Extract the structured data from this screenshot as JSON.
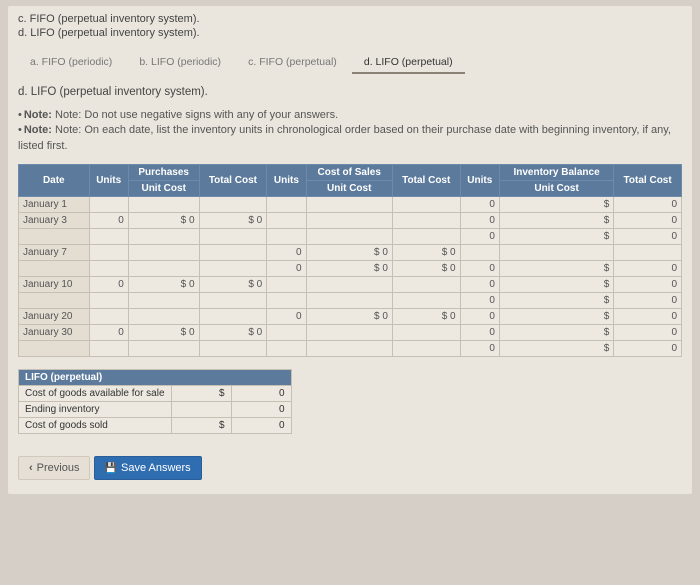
{
  "problems": {
    "c": "c. FIFO (perpetual inventory system).",
    "d": "d. LIFO (perpetual inventory system)."
  },
  "tabs": [
    {
      "label": "a. FIFO (periodic)",
      "active": false
    },
    {
      "label": "b. LIFO (periodic)",
      "active": false
    },
    {
      "label": "c. FIFO (perpetual)",
      "active": false
    },
    {
      "label": "d. LIFO (perpetual)",
      "active": true
    }
  ],
  "section_title": "d. LIFO (perpetual inventory system).",
  "notes": {
    "n1": "Note: Do not use negative signs with any of your answers.",
    "n2": "Note: On each date, list the inventory units in chronological order based on their purchase date with beginning inventory, if any, listed first."
  },
  "table": {
    "group_headers": {
      "purchases": "Purchases",
      "cos": "Cost of Sales",
      "inv": "Inventory Balance"
    },
    "col_headers": {
      "date": "Date",
      "units": "Units",
      "unit_cost": "Unit Cost",
      "total_cost": "Total Cost"
    },
    "rows": [
      {
        "date": "January 1",
        "p_units": "",
        "p_uc": "",
        "p_tc": "",
        "c_units": "",
        "c_uc": "",
        "c_tc": "",
        "i_units": "0",
        "i_uc": "$",
        "i_tc": "0 $",
        "i_tot": "0"
      },
      {
        "date": "January 3",
        "p_units": "0",
        "p_uc": "$  0",
        "p_tc": "$  0",
        "c_units": "",
        "c_uc": "",
        "c_tc": "",
        "i_units": "0",
        "i_uc": "$",
        "i_tc": "0 $",
        "i_tot": "0"
      },
      {
        "date": "",
        "p_units": "",
        "p_uc": "",
        "p_tc": "",
        "c_units": "",
        "c_uc": "",
        "c_tc": "",
        "i_units": "0",
        "i_uc": "$",
        "i_tc": "0 $",
        "i_tot": "0"
      },
      {
        "date": "January 7",
        "p_units": "",
        "p_uc": "",
        "p_tc": "",
        "c_units": "0",
        "c_uc": "$  0",
        "c_tc": "$  0",
        "i_units": "",
        "i_uc": "",
        "i_tc": "",
        "i_tot": ""
      },
      {
        "date": "",
        "p_units": "",
        "p_uc": "",
        "p_tc": "",
        "c_units": "0",
        "c_uc": "$  0",
        "c_tc": "$  0",
        "i_units": "0",
        "i_uc": "$",
        "i_tc": "0 $",
        "i_tot": "0"
      },
      {
        "date": "January 10",
        "p_units": "0",
        "p_uc": "$  0",
        "p_tc": "$  0",
        "c_units": "",
        "c_uc": "",
        "c_tc": "",
        "i_units": "0",
        "i_uc": "$",
        "i_tc": "0 $",
        "i_tot": "0"
      },
      {
        "date": "",
        "p_units": "",
        "p_uc": "",
        "p_tc": "",
        "c_units": "",
        "c_uc": "",
        "c_tc": "",
        "i_units": "0",
        "i_uc": "$",
        "i_tc": "0 $",
        "i_tot": "0"
      },
      {
        "date": "January 20",
        "p_units": "",
        "p_uc": "",
        "p_tc": "",
        "c_units": "0",
        "c_uc": "$  0",
        "c_tc": "$  0",
        "i_units": "0",
        "i_uc": "$",
        "i_tc": "0 $",
        "i_tot": "0"
      },
      {
        "date": "January 30",
        "p_units": "0",
        "p_uc": "$  0",
        "p_tc": "$  0",
        "c_units": "",
        "c_uc": "",
        "c_tc": "",
        "i_units": "0",
        "i_uc": "$",
        "i_tc": "0 $",
        "i_tot": "0"
      },
      {
        "date": "",
        "p_units": "",
        "p_uc": "",
        "p_tc": "",
        "c_units": "",
        "c_uc": "",
        "c_tc": "",
        "i_units": "0",
        "i_uc": "$",
        "i_tc": "0 $",
        "i_tot": "0"
      }
    ]
  },
  "summary": {
    "title": "LIFO (perpetual)",
    "rows": [
      {
        "label": "Cost of goods available for sale",
        "sym": "$",
        "val": "0"
      },
      {
        "label": "Ending inventory",
        "sym": "",
        "val": "0"
      },
      {
        "label": "Cost of goods sold",
        "sym": "$",
        "val": "0"
      }
    ]
  },
  "buttons": {
    "prev": "Previous",
    "save": "Save Answers"
  }
}
